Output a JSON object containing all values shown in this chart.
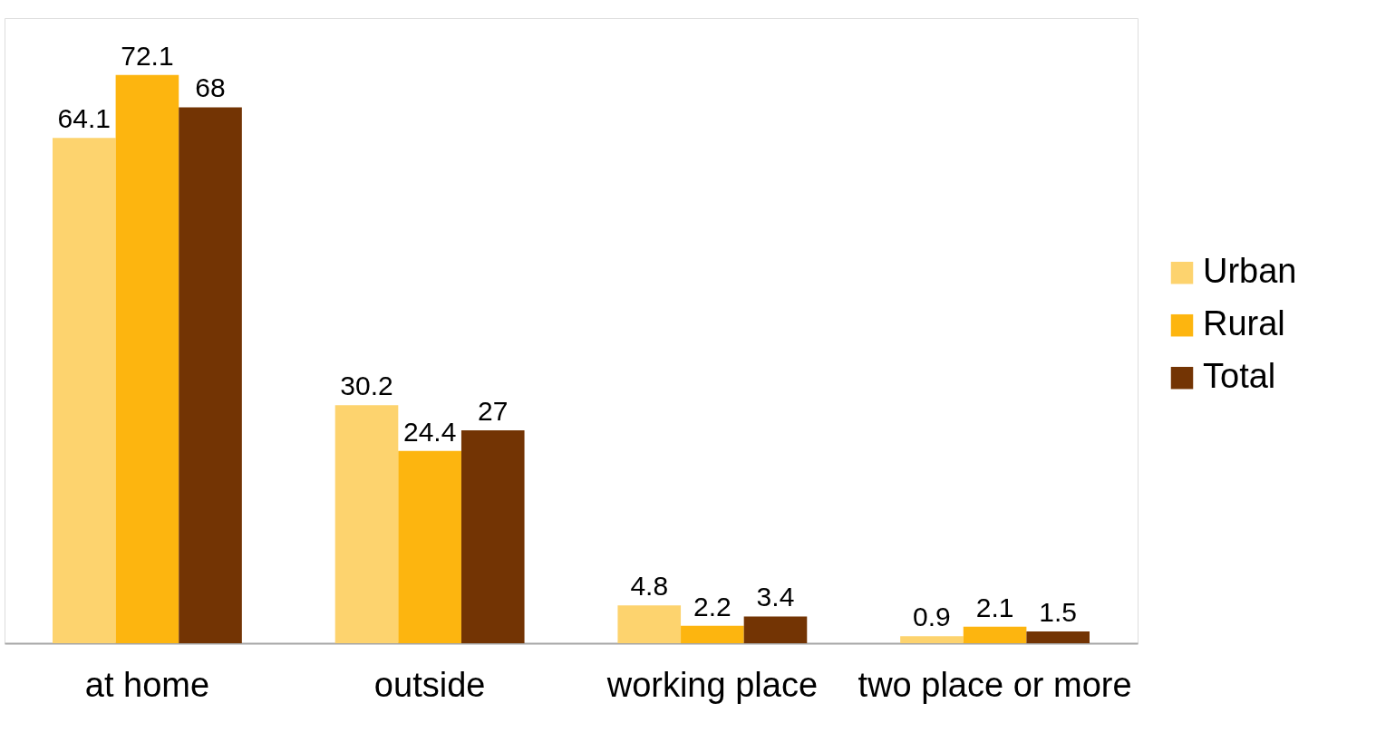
{
  "chart_data": {
    "type": "bar",
    "categories": [
      "at home",
      "outside",
      "working place",
      "two place or more"
    ],
    "series": [
      {
        "name": "Urban",
        "color": "#fdd36e",
        "values": [
          64.1,
          30.2,
          4.8,
          0.9
        ]
      },
      {
        "name": "Rural",
        "color": "#fdb50f",
        "values": [
          72.1,
          24.4,
          2.2,
          2.1
        ]
      },
      {
        "name": "Total",
        "color": "#733404",
        "values": [
          68,
          27,
          3.4,
          1.5
        ]
      }
    ],
    "data_labels": true,
    "legend": "right",
    "grid": false
  }
}
